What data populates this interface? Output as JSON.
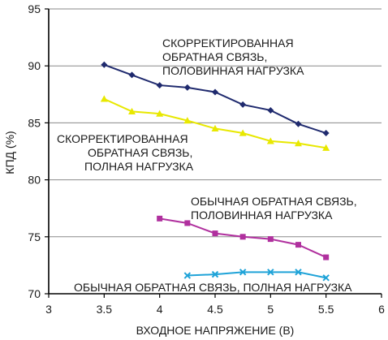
{
  "chart_data": {
    "type": "line",
    "xlabel": "ВХОДНОЕ НАПРЯЖЕНИЕ (В)",
    "ylabel": "КПД (%)",
    "xlim": [
      3,
      6
    ],
    "ylim": [
      70,
      95
    ],
    "xticks": [
      "3",
      "3.5",
      "4",
      "4.5",
      "5",
      "5.5",
      "6"
    ],
    "yticks": [
      "70",
      "75",
      "80",
      "85",
      "90",
      "95"
    ],
    "grid": "horizontal",
    "series": [
      {
        "name": "СКОРРЕКТИРОВАННАЯ ОБРАТНАЯ СВЯЗЬ, ПОЛОВИННАЯ НАГРУЗКА",
        "label_lines": [
          "СКОРРЕКТИРОВАННАЯ",
          "ОБРАТНАЯ СВЯЗЬ,",
          "ПОЛОВИННАЯ НАГРУЗКА"
        ],
        "color": "#1f2a6e",
        "marker": "diamond",
        "x": [
          3.5,
          3.75,
          4.0,
          4.25,
          4.5,
          4.75,
          5.0,
          5.25,
          5.5
        ],
        "y": [
          90.1,
          89.2,
          88.3,
          88.1,
          87.7,
          86.6,
          86.1,
          84.9,
          84.1
        ]
      },
      {
        "name": "СКОРРЕКТИРОВАННАЯ ОБРАТНАЯ СВЯЗЬ, ПОЛНАЯ НАГРУЗКА",
        "label_lines": [
          "СКОРРЕКТИРОВАННАЯ",
          "ОБРАТНАЯ СВЯЗЬ,",
          "ПОЛНАЯ НАГРУЗКА"
        ],
        "color": "#e8e800",
        "marker": "triangle",
        "x": [
          3.5,
          3.75,
          4.0,
          4.25,
          4.5,
          4.75,
          5.0,
          5.25,
          5.5
        ],
        "y": [
          87.1,
          86.0,
          85.8,
          85.2,
          84.5,
          84.1,
          83.4,
          83.2,
          82.8
        ]
      },
      {
        "name": "ОБЫЧНАЯ ОБРАТНАЯ СВЯЗЬ, ПОЛОВИННАЯ НАГРУЗКА",
        "label_lines": [
          "ОБЫЧНАЯ ОБРАТНАЯ СВЯЗЬ,",
          "ПОЛОВИННАЯ НАГРУЗКА"
        ],
        "color": "#b0309e",
        "marker": "square",
        "x": [
          4.0,
          4.25,
          4.5,
          4.75,
          5.0,
          5.25,
          5.5
        ],
        "y": [
          76.6,
          76.2,
          75.3,
          75.0,
          74.8,
          74.3,
          73.2
        ]
      },
      {
        "name": "ОБЫЧНАЯ ОБРАТНАЯ СВЯЗЬ, ПОЛНАЯ НАГРУЗКА",
        "label_lines": [
          "ОБЫЧНАЯ ОБРАТНАЯ СВЯЗЬ, ПОЛНАЯ НАГРУЗКА"
        ],
        "color": "#1fa3d8",
        "marker": "x",
        "x": [
          4.25,
          4.5,
          4.75,
          5.0,
          5.25,
          5.5
        ],
        "y": [
          71.6,
          71.7,
          71.9,
          71.9,
          71.9,
          71.4
        ]
      }
    ]
  }
}
